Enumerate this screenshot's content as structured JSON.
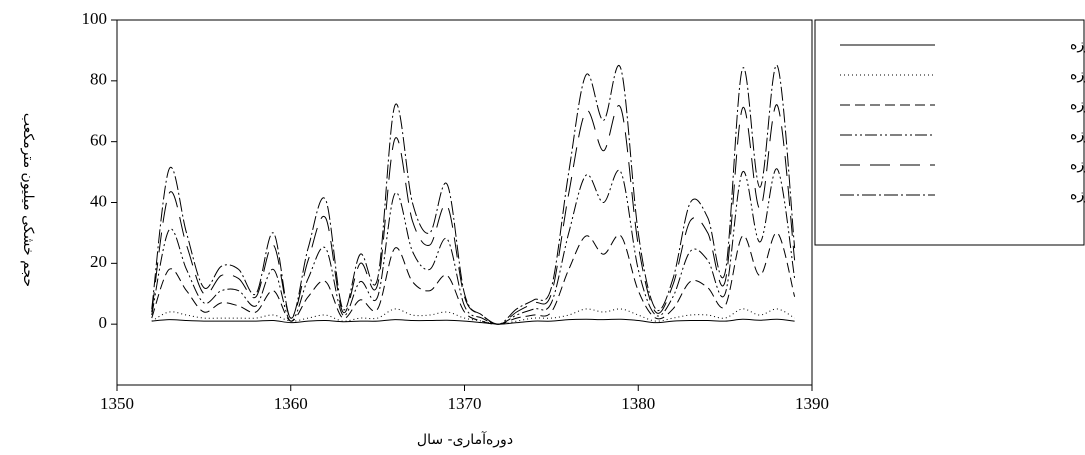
{
  "chart_data": {
    "type": "line",
    "x_label": "دوره‌آماری- سال",
    "y_label": "حجم خشکی میلیون مترمکعب",
    "x": [
      1352,
      1353,
      1354,
      1355,
      1356,
      1357,
      1358,
      1359,
      1360,
      1361,
      1362,
      1363,
      1364,
      1365,
      1366,
      1367,
      1368,
      1369,
      1370,
      1371,
      1372,
      1373,
      1374,
      1375,
      1376,
      1377,
      1378,
      1379,
      1380,
      1381,
      1382,
      1383,
      1384,
      1385,
      1386,
      1387,
      1388,
      1389
    ],
    "xlim": [
      1350,
      1390
    ],
    "xticks": [
      1350,
      1360,
      1370,
      1380,
      1390
    ],
    "ylim": [
      -20,
      100
    ],
    "yticks": [
      0,
      20,
      40,
      60,
      80,
      100
    ],
    "series": [
      {
        "name": "یک روزه",
        "color": "#000000",
        "dash": "none",
        "values": [
          1,
          1.5,
          1.2,
          1,
          1,
          1,
          1,
          1.2,
          0.5,
          1,
          1.2,
          0.8,
          1,
          1,
          1.5,
          1.2,
          1.2,
          1.3,
          1,
          0.5,
          0,
          0.5,
          1,
          1,
          1.5,
          1.6,
          1.5,
          1.6,
          1.2,
          0.5,
          1,
          1.2,
          1.2,
          1,
          1.6,
          1.3,
          1.6,
          1
        ]
      },
      {
        "name": "سه روزه",
        "color": "#000000",
        "dash": "1,3",
        "values": [
          1,
          4,
          3,
          2,
          2,
          2,
          2,
          3,
          1,
          2,
          3,
          1,
          2,
          2,
          5,
          3,
          3,
          4,
          2,
          1,
          0,
          1,
          2,
          2,
          3,
          5,
          4,
          5,
          3,
          1,
          2,
          3,
          3,
          2,
          5,
          3,
          5,
          2
        ]
      },
      {
        "name": "ده روزه",
        "color": "#000000",
        "dash": "10,5",
        "values": [
          2,
          18,
          11,
          4,
          7,
          6,
          4,
          11,
          1,
          9,
          14,
          2,
          8,
          5,
          25,
          14,
          11,
          16,
          4,
          1,
          0,
          2,
          3,
          4,
          18,
          29,
          23,
          29,
          11,
          2,
          5,
          14,
          12,
          6,
          29,
          16,
          30,
          9
        ]
      },
      {
        "name": "بیست روزه",
        "color": "#000000",
        "dash": "12,3,2,3,2,3",
        "values": [
          3,
          31,
          18,
          7,
          11,
          11,
          6,
          18,
          1,
          15,
          25,
          3,
          14,
          9,
          43,
          24,
          18,
          28,
          6,
          2,
          0,
          3,
          5,
          7,
          30,
          49,
          40,
          50,
          18,
          3,
          9,
          24,
          21,
          10,
          50,
          27,
          51,
          15
        ]
      },
      {
        "name": "چهل روزه",
        "color": "#000000",
        "dash": "20,10",
        "values": [
          4,
          43,
          26,
          10,
          16,
          15,
          9,
          26,
          2,
          21,
          35,
          4,
          20,
          13,
          61,
          34,
          26,
          39,
          9,
          3,
          0,
          4,
          7,
          10,
          43,
          70,
          57,
          71,
          26,
          4,
          13,
          34,
          30,
          14,
          71,
          38,
          72,
          21
        ]
      },
      {
        "name": "شصت روزه",
        "color": "#000000",
        "dash": "14,3,2,3",
        "values": [
          5,
          51,
          30,
          12,
          19,
          18,
          10,
          30,
          2,
          25,
          41,
          5,
          23,
          15,
          72,
          40,
          30,
          46,
          10,
          3,
          0,
          5,
          8,
          12,
          50,
          82,
          67,
          84,
          30,
          5,
          15,
          40,
          35,
          17,
          84,
          45,
          85,
          25
        ]
      }
    ]
  }
}
